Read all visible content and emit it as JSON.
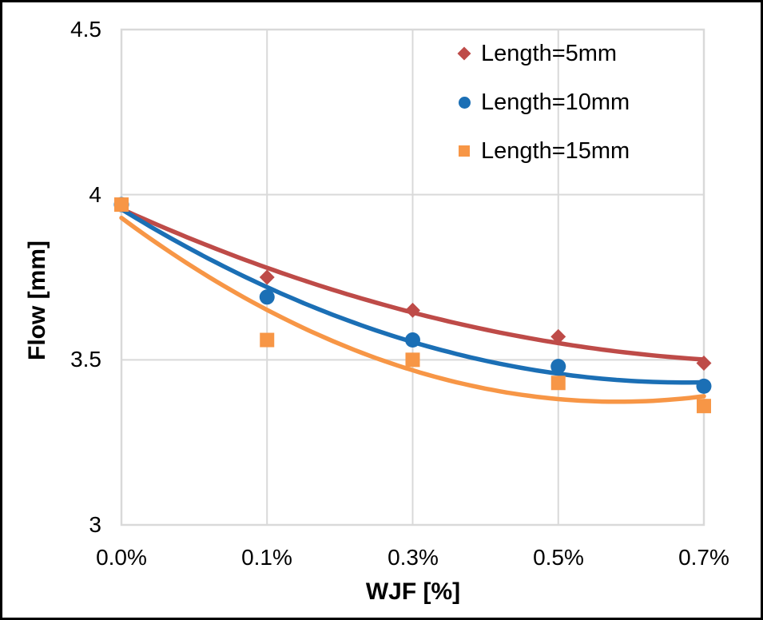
{
  "chart_data": {
    "type": "scatter",
    "title": "",
    "xlabel": "WJF [%]",
    "ylabel": "Flow [mm]",
    "categories": [
      "0.0%",
      "0.1%",
      "0.3%",
      "0.5%",
      "0.7%"
    ],
    "y_tick_labels": [
      "4.5",
      "4",
      "3.5",
      "3"
    ],
    "y_ticks": [
      4.5,
      4.0,
      3.5,
      3.0
    ],
    "ylim": [
      3.0,
      4.5
    ],
    "grid": true,
    "legend_position": "top-right-inside",
    "trendline": "quadratic-fit-per-series",
    "series": [
      {
        "name": "Length=5mm",
        "marker": "diamond",
        "color": "#BE4B48",
        "values": [
          3.97,
          3.75,
          3.65,
          3.57,
          3.49
        ]
      },
      {
        "name": "Length=10mm",
        "marker": "circle",
        "color": "#1B6FB5",
        "values": [
          3.97,
          3.69,
          3.56,
          3.48,
          3.42
        ]
      },
      {
        "name": "Length=15mm",
        "marker": "square",
        "color": "#F79646",
        "values": [
          3.97,
          3.56,
          3.5,
          3.43,
          3.36
        ]
      }
    ],
    "colors": {
      "gridline": "#D9D9D9",
      "plot_border": "#D9D9D9",
      "text": "#000000",
      "frame": "#000000",
      "background": "#FFFFFF"
    }
  }
}
